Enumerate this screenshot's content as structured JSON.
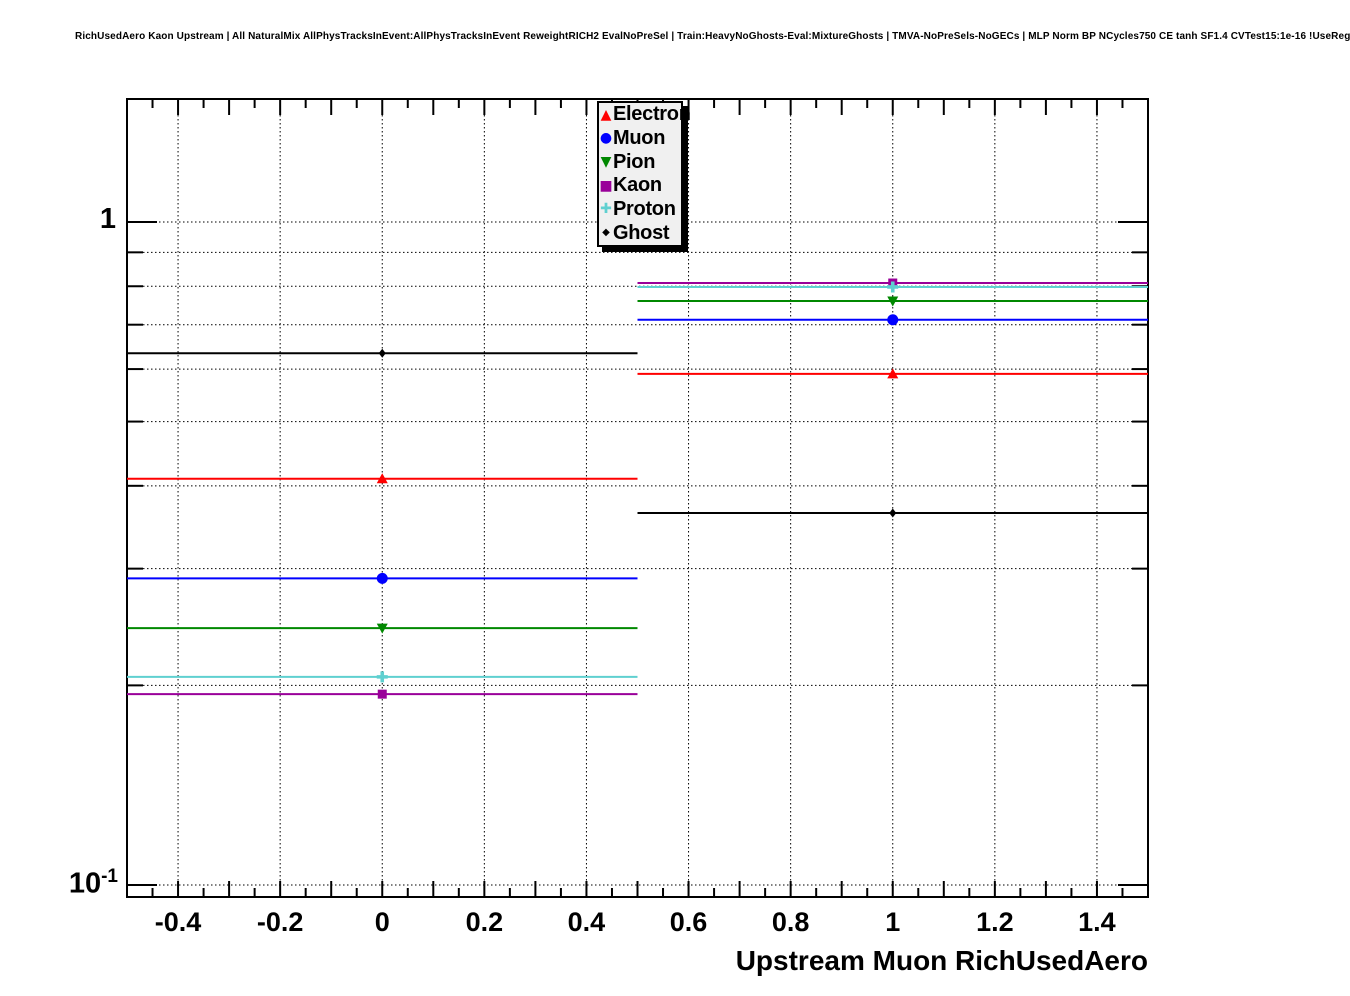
{
  "header": {
    "title": "RichUsedAero Kaon Upstream | All NaturalMix AllPhysTracksInEvent:AllPhysTracksInEvent ReweightRICH2 EvalNoPreSel | Train:HeavyNoGhosts-Eval:MixtureGhosts | TMVA-NoPreSels-NoGECs | MLP Norm BP NCycles750 CE tanh SF1.4 CVTest15:1e-16 !UseReg"
  },
  "chart_data": {
    "type": "scatter",
    "title": "",
    "xlabel": "Upstream Muon RichUsedAero",
    "ylabel": "",
    "xlim": [
      -0.5,
      1.5
    ],
    "ylim": [
      0.0959,
      1.533
    ],
    "yscale": "log",
    "grid": true,
    "legend_position": "top-center-inside",
    "x_major_ticks": [
      -0.4,
      -0.2,
      0,
      0.2,
      0.4,
      0.6,
      0.8,
      1,
      1.2,
      1.4
    ],
    "x_tick_labels": [
      "-0.4",
      "-0.2",
      "0",
      "0.2",
      "0.4",
      "0.6",
      "0.8",
      "1",
      "1.2",
      "1.4"
    ],
    "x_minor_step": 0.05,
    "y_grid_values": [
      0.1,
      0.2,
      0.3,
      0.4,
      0.5,
      0.6,
      0.7,
      0.8,
      0.9,
      1.0
    ],
    "y_tick_top": "1",
    "y_tick_bottom_base": "10",
    "y_tick_bottom_exp": "-1",
    "bins": [
      {
        "center": 0,
        "low": -0.5,
        "high": 0.5
      },
      {
        "center": 1,
        "low": 0.5,
        "high": 1.5
      }
    ],
    "series": [
      {
        "name": "Electron",
        "color": "#ff0000",
        "marker": "triangle-up",
        "values": [
          0.41,
          0.59
        ]
      },
      {
        "name": "Muon",
        "color": "#0000ff",
        "marker": "circle",
        "values": [
          0.29,
          0.712
        ]
      },
      {
        "name": "Pion",
        "color": "#008800",
        "marker": "triangle-down",
        "values": [
          0.244,
          0.76
        ]
      },
      {
        "name": "Kaon",
        "color": "#990099",
        "marker": "square",
        "values": [
          0.194,
          0.809
        ]
      },
      {
        "name": "Proton",
        "color": "#5fd0d0",
        "marker": "cross",
        "values": [
          0.206,
          0.798
        ]
      },
      {
        "name": "Ghost",
        "color": "#000000",
        "marker": "diamond",
        "values": [
          0.634,
          0.364
        ]
      }
    ]
  }
}
